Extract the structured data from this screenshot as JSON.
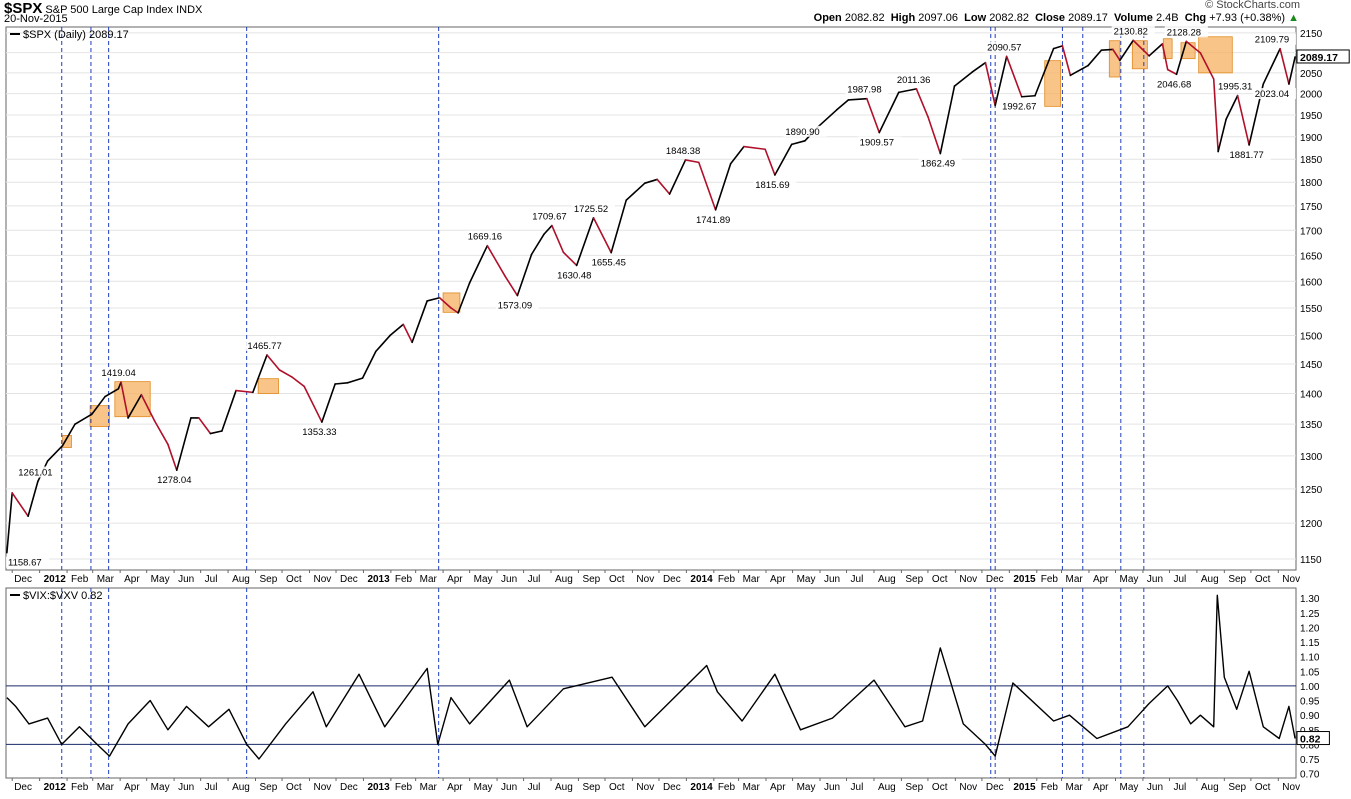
{
  "header": {
    "symbol": "$SPX",
    "name": "S&P 500 Large Cap Index",
    "exchange": "INDX",
    "date": "20-Nov-2015",
    "brand": "© StockCharts.com",
    "open_label": "Open",
    "open": "2082.82",
    "high_label": "High",
    "high": "2097.06",
    "low_label": "Low",
    "low": "2082.82",
    "close_label": "Close",
    "close": "2089.17",
    "volume_label": "Volume",
    "volume": "2.4B",
    "chg_label": "Chg",
    "chg": "+7.93 (+0.38%)",
    "chg_arrow": "▲"
  },
  "colors": {
    "up_line": "#000000",
    "down_line": "#b0102a",
    "highlight": "#f5b060",
    "highlight_border": "#e08a20",
    "vline": "#1f3fbf",
    "hline": "#1a2a6a",
    "grid": "#e4e4e4"
  },
  "chart_data": [
    {
      "type": "line",
      "title": "$SPX (Daily) 2089.17",
      "last_value": "2089.17",
      "y_scale": "log",
      "ylim": [
        1135,
        2165
      ],
      "y_ticks": [
        1150,
        1200,
        1250,
        1300,
        1350,
        1400,
        1450,
        1500,
        1550,
        1600,
        1650,
        1700,
        1750,
        1800,
        1850,
        1900,
        1950,
        2000,
        2050,
        2100,
        2150
      ],
      "x_tick_labels": [
        "Dec",
        "2012",
        "Feb",
        "Mar",
        "Apr",
        "May",
        "Jun",
        "Jul",
        "Aug",
        "Sep",
        "Oct",
        "Nov",
        "Dec",
        "2013",
        "Feb",
        "Mar",
        "Apr",
        "May",
        "Jun",
        "Jul",
        "Aug",
        "Sep",
        "Oct",
        "Nov",
        "Dec",
        "2014",
        "Feb",
        "Mar",
        "Apr",
        "May",
        "Jun",
        "Jul",
        "Aug",
        "Sep",
        "Oct",
        "Nov",
        "Dec",
        "2015",
        "Feb",
        "Mar",
        "Apr",
        "May",
        "Jun",
        "Jul",
        "Aug",
        "Sep",
        "Oct",
        "Nov"
      ],
      "x_tick_bold": [
        "2012",
        "2013",
        "2014",
        "2015"
      ],
      "x": [
        "2011-11-25",
        "2011-12-01",
        "2011-12-19",
        "2011-12-30",
        "2012-01-10",
        "2012-01-27",
        "2012-02-10",
        "2012-02-29",
        "2012-03-15",
        "2012-03-30",
        "2012-04-02",
        "2012-04-10",
        "2012-04-25",
        "2012-05-10",
        "2012-05-25",
        "2012-06-04",
        "2012-06-20",
        "2012-06-29",
        "2012-07-12",
        "2012-07-25",
        "2012-08-10",
        "2012-08-29",
        "2012-09-14",
        "2012-09-28",
        "2012-10-12",
        "2012-10-26",
        "2012-11-15",
        "2012-11-30",
        "2012-12-14",
        "2012-12-31",
        "2013-01-15",
        "2013-01-31",
        "2013-02-15",
        "2013-02-25",
        "2013-03-14",
        "2013-03-28",
        "2013-04-10",
        "2013-04-18",
        "2013-05-01",
        "2013-05-21",
        "2013-06-10",
        "2013-06-24",
        "2013-07-10",
        "2013-07-24",
        "2013-08-02",
        "2013-08-15",
        "2013-08-30",
        "2013-09-18",
        "2013-10-08",
        "2013-10-25",
        "2013-11-15",
        "2013-11-29",
        "2013-12-13",
        "2013-12-31",
        "2014-01-15",
        "2014-02-03",
        "2014-02-20",
        "2014-03-07",
        "2014-03-31",
        "2014-04-11",
        "2014-04-30",
        "2014-05-15",
        "2014-05-30",
        "2014-06-20",
        "2014-07-03",
        "2014-07-24",
        "2014-08-07",
        "2014-08-29",
        "2014-09-18",
        "2014-10-01",
        "2014-10-15",
        "2014-10-31",
        "2014-11-20",
        "2014-12-05",
        "2014-12-16",
        "2014-12-29",
        "2015-01-15",
        "2015-01-30",
        "2015-02-20",
        "2015-03-02",
        "2015-03-11",
        "2015-03-31",
        "2015-04-15",
        "2015-04-28",
        "2015-05-06",
        "2015-05-21",
        "2015-06-08",
        "2015-06-23",
        "2015-06-29",
        "2015-07-09",
        "2015-07-20",
        "2015-08-05",
        "2015-08-20",
        "2015-08-25",
        "2015-09-03",
        "2015-09-16",
        "2015-09-29",
        "2015-10-15",
        "2015-11-03",
        "2015-11-13",
        "2015-11-20"
      ],
      "values": [
        1158.67,
        1244,
        1210,
        1261.01,
        1292,
        1316,
        1350,
        1366,
        1395,
        1408,
        1419.04,
        1360,
        1398,
        1355,
        1318,
        1278.04,
        1360,
        1360,
        1335,
        1339,
        1405,
        1402,
        1465.77,
        1440,
        1428,
        1412,
        1353.33,
        1416,
        1418,
        1426,
        1472,
        1500,
        1520,
        1488,
        1563,
        1569,
        1550,
        1541,
        1597,
        1669.16,
        1610,
        1573.09,
        1652,
        1692,
        1709.67,
        1656,
        1630.48,
        1725.52,
        1655.45,
        1762,
        1798,
        1806,
        1775,
        1848.38,
        1843,
        1741.89,
        1840,
        1878,
        1872,
        1815.69,
        1883,
        1890.9,
        1923,
        1962,
        1985,
        1987.98,
        1909.57,
        2003,
        2011.36,
        1946,
        1862.49,
        2018,
        2052,
        2075,
        1972,
        2090.57,
        1992.67,
        1995,
        2110,
        2117,
        2044,
        2068,
        2106,
        2108,
        2081,
        2130.82,
        2092,
        2122,
        2058,
        2046.68,
        2128.28,
        2099,
        2035,
        1867,
        1940,
        1995.31,
        1881.77,
        2023,
        2109.79,
        2023.04,
        2089.17
      ],
      "annotations": [
        {
          "x": "2011-11-25",
          "label": "1158.67",
          "pos": "below"
        },
        {
          "x": "2011-12-30",
          "label": "1261.01",
          "pos": "above"
        },
        {
          "x": "2012-04-02",
          "label": "1419.04",
          "pos": "above"
        },
        {
          "x": "2012-06-04",
          "label": "1278.04",
          "pos": "below"
        },
        {
          "x": "2012-09-14",
          "label": "1465.77",
          "pos": "above"
        },
        {
          "x": "2012-11-15",
          "label": "1353.33",
          "pos": "below"
        },
        {
          "x": "2013-05-21",
          "label": "1669.16",
          "pos": "above"
        },
        {
          "x": "2013-06-24",
          "label": "1573.09",
          "pos": "below"
        },
        {
          "x": "2013-08-02",
          "label": "1709.67",
          "pos": "above"
        },
        {
          "x": "2013-08-30",
          "label": "1630.48",
          "pos": "below"
        },
        {
          "x": "2013-09-18",
          "label": "1725.52",
          "pos": "above"
        },
        {
          "x": "2013-10-08",
          "label": "1655.45",
          "pos": "below"
        },
        {
          "x": "2013-12-31",
          "label": "1848.38",
          "pos": "above"
        },
        {
          "x": "2014-02-03",
          "label": "1741.89",
          "pos": "below"
        },
        {
          "x": "2014-04-11",
          "label": "1815.69",
          "pos": "below"
        },
        {
          "x": "2014-05-15",
          "label": "1890.90",
          "pos": "above"
        },
        {
          "x": "2014-07-24",
          "label": "1987.98",
          "pos": "above"
        },
        {
          "x": "2014-08-07",
          "label": "1909.57",
          "pos": "below"
        },
        {
          "x": "2014-09-18",
          "label": "2011.36",
          "pos": "above"
        },
        {
          "x": "2014-10-15",
          "label": "1862.49",
          "pos": "below"
        },
        {
          "x": "2014-12-29",
          "label": "2090.57",
          "pos": "above"
        },
        {
          "x": "2015-01-15",
          "label": "1992.67",
          "pos": "below"
        },
        {
          "x": "2015-05-21",
          "label": "2130.82",
          "pos": "above"
        },
        {
          "x": "2015-07-09",
          "label": "2046.68",
          "pos": "below"
        },
        {
          "x": "2015-07-20",
          "label": "2128.28",
          "pos": "above"
        },
        {
          "x": "2015-09-16",
          "label": "1995.31",
          "pos": "above"
        },
        {
          "x": "2015-09-29",
          "label": "1881.77",
          "pos": "below"
        },
        {
          "x": "2015-11-03",
          "label": "2109.79",
          "pos": "above"
        },
        {
          "x": "2015-11-13",
          "label": "2023.04",
          "pos": "below"
        }
      ],
      "highlight_ranges": [
        {
          "x0": "2012-01-27",
          "x1": "2012-02-06",
          "y0": 1313,
          "y1": 1332
        },
        {
          "x0": "2012-02-27",
          "x1": "2012-03-20",
          "y0": 1346,
          "y1": 1380
        },
        {
          "x0": "2012-03-26",
          "x1": "2012-05-05",
          "y0": 1362,
          "y1": 1420
        },
        {
          "x0": "2012-09-04",
          "x1": "2012-09-27",
          "y0": 1400,
          "y1": 1425
        },
        {
          "x0": "2013-04-01",
          "x1": "2013-04-20",
          "y0": 1542,
          "y1": 1578
        },
        {
          "x0": "2015-02-10",
          "x1": "2015-02-28",
          "y0": 1970,
          "y1": 2080
        },
        {
          "x0": "2015-04-24",
          "x1": "2015-05-06",
          "y0": 2040,
          "y1": 2130
        },
        {
          "x0": "2015-05-20",
          "x1": "2015-06-06",
          "y0": 2060,
          "y1": 2130
        },
        {
          "x0": "2015-06-24",
          "x1": "2015-07-04",
          "y0": 2085,
          "y1": 2135
        },
        {
          "x0": "2015-07-14",
          "x1": "2015-07-30",
          "y0": 2085,
          "y1": 2125
        },
        {
          "x0": "2015-08-03",
          "x1": "2015-09-10",
          "y0": 2050,
          "y1": 2140
        }
      ]
    },
    {
      "type": "line",
      "title": "$VIX:$VXV 0.82",
      "last_value": "0.82",
      "ylim": [
        0.685,
        1.335
      ],
      "y_ticks": [
        0.7,
        0.75,
        0.8,
        0.85,
        0.9,
        0.95,
        1.0,
        1.05,
        1.1,
        1.15,
        1.2,
        1.25,
        1.3
      ],
      "reference_lines": [
        1.0,
        0.8
      ],
      "x": [
        "2011-11-25",
        "2011-12-05",
        "2011-12-20",
        "2012-01-10",
        "2012-01-26",
        "2012-02-15",
        "2012-03-06",
        "2012-03-20",
        "2012-04-10",
        "2012-05-05",
        "2012-05-25",
        "2012-06-15",
        "2012-07-10",
        "2012-08-02",
        "2012-08-22",
        "2012-09-05",
        "2012-10-05",
        "2012-11-05",
        "2012-11-20",
        "2012-12-27",
        "2013-01-25",
        "2013-03-14",
        "2013-03-26",
        "2013-04-10",
        "2013-05-01",
        "2013-06-15",
        "2013-07-05",
        "2013-08-15",
        "2013-10-09",
        "2013-11-15",
        "2014-01-24",
        "2014-02-05",
        "2014-03-05",
        "2014-04-11",
        "2014-05-10",
        "2014-06-15",
        "2014-08-01",
        "2014-09-05",
        "2014-09-25",
        "2014-10-15",
        "2014-11-10",
        "2014-12-05",
        "2014-12-16",
        "2015-01-05",
        "2015-02-20",
        "2015-03-10",
        "2015-04-10",
        "2015-05-15",
        "2015-06-08",
        "2015-06-29",
        "2015-07-10",
        "2015-07-25",
        "2015-08-05",
        "2015-08-20",
        "2015-08-24",
        "2015-09-01",
        "2015-09-15",
        "2015-09-29",
        "2015-10-15",
        "2015-11-02",
        "2015-11-13",
        "2015-11-20"
      ],
      "values": [
        0.96,
        0.93,
        0.87,
        0.89,
        0.8,
        0.86,
        0.8,
        0.76,
        0.87,
        0.95,
        0.85,
        0.93,
        0.86,
        0.92,
        0.8,
        0.75,
        0.87,
        0.98,
        0.86,
        1.04,
        0.86,
        1.06,
        0.8,
        0.96,
        0.87,
        1.02,
        0.86,
        0.99,
        1.03,
        0.86,
        1.07,
        0.98,
        0.88,
        1.04,
        0.85,
        0.89,
        1.02,
        0.86,
        0.88,
        1.13,
        0.87,
        0.8,
        0.76,
        1.01,
        0.88,
        0.9,
        0.82,
        0.86,
        0.94,
        1.0,
        0.95,
        0.87,
        0.9,
        0.86,
        1.31,
        1.03,
        0.92,
        1.05,
        0.86,
        0.82,
        0.93,
        0.82
      ]
    }
  ],
  "vertical_markers": [
    "2012-01-26",
    "2012-02-28",
    "2012-03-19",
    "2012-08-22",
    "2013-03-27",
    "2014-12-11",
    "2014-12-16",
    "2015-03-02",
    "2015-03-25",
    "2015-05-07",
    "2015-06-02"
  ]
}
